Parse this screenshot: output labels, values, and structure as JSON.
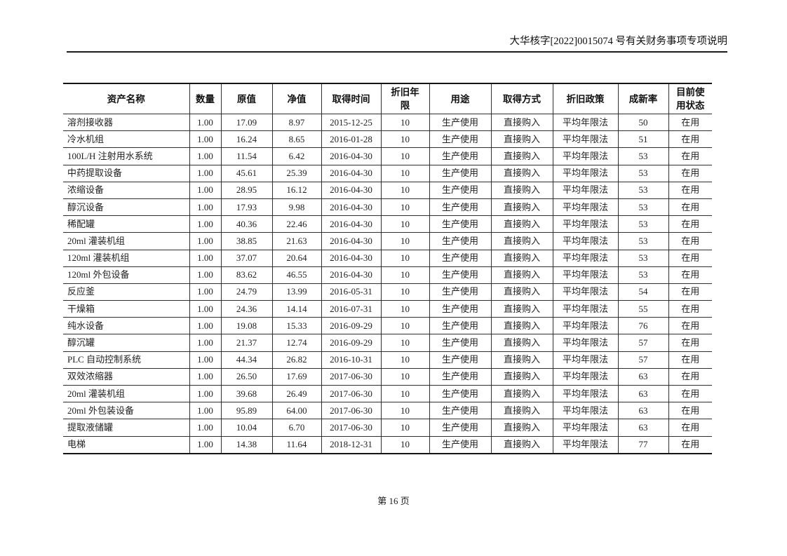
{
  "page_header": {
    "title": "大华核字[2022]0015074 号有关财务事项专项说明"
  },
  "table": {
    "columns": [
      {
        "key": "asset-name",
        "label": "资产名称"
      },
      {
        "key": "quantity",
        "label": "数量"
      },
      {
        "key": "original-value",
        "label": "原值"
      },
      {
        "key": "net-value",
        "label": "净值"
      },
      {
        "key": "acquisition-date",
        "label": "取得时间"
      },
      {
        "key": "depreciation-years",
        "label": "折旧年限"
      },
      {
        "key": "usage",
        "label": "用途"
      },
      {
        "key": "acquisition-method",
        "label": "取得方式"
      },
      {
        "key": "depreciation-policy",
        "label": "折旧政策"
      },
      {
        "key": "newness-rate",
        "label": "成新率"
      },
      {
        "key": "current-status",
        "label": "目前使用状态"
      }
    ],
    "rows": [
      [
        "溶剂接收器",
        "1.00",
        "17.09",
        "8.97",
        "2015-12-25",
        "10",
        "生产使用",
        "直接购入",
        "平均年限法",
        "50",
        "在用"
      ],
      [
        "冷水机组",
        "1.00",
        "16.24",
        "8.65",
        "2016-01-28",
        "10",
        "生产使用",
        "直接购入",
        "平均年限法",
        "51",
        "在用"
      ],
      [
        "100L/H 注射用水系统",
        "1.00",
        "11.54",
        "6.42",
        "2016-04-30",
        "10",
        "生产使用",
        "直接购入",
        "平均年限法",
        "53",
        "在用"
      ],
      [
        "中药提取设备",
        "1.00",
        "45.61",
        "25.39",
        "2016-04-30",
        "10",
        "生产使用",
        "直接购入",
        "平均年限法",
        "53",
        "在用"
      ],
      [
        "浓缩设备",
        "1.00",
        "28.95",
        "16.12",
        "2016-04-30",
        "10",
        "生产使用",
        "直接购入",
        "平均年限法",
        "53",
        "在用"
      ],
      [
        "醇沉设备",
        "1.00",
        "17.93",
        "9.98",
        "2016-04-30",
        "10",
        "生产使用",
        "直接购入",
        "平均年限法",
        "53",
        "在用"
      ],
      [
        "稀配罐",
        "1.00",
        "40.36",
        "22.46",
        "2016-04-30",
        "10",
        "生产使用",
        "直接购入",
        "平均年限法",
        "53",
        "在用"
      ],
      [
        "20ml 灌装机组",
        "1.00",
        "38.85",
        "21.63",
        "2016-04-30",
        "10",
        "生产使用",
        "直接购入",
        "平均年限法",
        "53",
        "在用"
      ],
      [
        "120ml 灌装机组",
        "1.00",
        "37.07",
        "20.64",
        "2016-04-30",
        "10",
        "生产使用",
        "直接购入",
        "平均年限法",
        "53",
        "在用"
      ],
      [
        "120ml 外包设备",
        "1.00",
        "83.62",
        "46.55",
        "2016-04-30",
        "10",
        "生产使用",
        "直接购入",
        "平均年限法",
        "53",
        "在用"
      ],
      [
        "反应釜",
        "1.00",
        "24.79",
        "13.99",
        "2016-05-31",
        "10",
        "生产使用",
        "直接购入",
        "平均年限法",
        "54",
        "在用"
      ],
      [
        "干燥箱",
        "1.00",
        "24.36",
        "14.14",
        "2016-07-31",
        "10",
        "生产使用",
        "直接购入",
        "平均年限法",
        "55",
        "在用"
      ],
      [
        "纯水设备",
        "1.00",
        "19.08",
        "15.33",
        "2016-09-29",
        "10",
        "生产使用",
        "直接购入",
        "平均年限法",
        "76",
        "在用"
      ],
      [
        "醇沉罐",
        "1.00",
        "21.37",
        "12.74",
        "2016-09-29",
        "10",
        "生产使用",
        "直接购入",
        "平均年限法",
        "57",
        "在用"
      ],
      [
        "PLC 自动控制系统",
        "1.00",
        "44.34",
        "26.82",
        "2016-10-31",
        "10",
        "生产使用",
        "直接购入",
        "平均年限法",
        "57",
        "在用"
      ],
      [
        "双效浓缩器",
        "1.00",
        "26.50",
        "17.69",
        "2017-06-30",
        "10",
        "生产使用",
        "直接购入",
        "平均年限法",
        "63",
        "在用"
      ],
      [
        "20ml 灌装机组",
        "1.00",
        "39.68",
        "26.49",
        "2017-06-30",
        "10",
        "生产使用",
        "直接购入",
        "平均年限法",
        "63",
        "在用"
      ],
      [
        "20ml 外包装设备",
        "1.00",
        "95.89",
        "64.00",
        "2017-06-30",
        "10",
        "生产使用",
        "直接购入",
        "平均年限法",
        "63",
        "在用"
      ],
      [
        "提取液储罐",
        "1.00",
        "10.04",
        "6.70",
        "2017-06-30",
        "10",
        "生产使用",
        "直接购入",
        "平均年限法",
        "63",
        "在用"
      ],
      [
        "电梯",
        "1.00",
        "14.38",
        "11.64",
        "2018-12-31",
        "10",
        "生产使用",
        "直接购入",
        "平均年限法",
        "77",
        "在用"
      ]
    ]
  },
  "footer": {
    "page_number_label": "第 16 页"
  }
}
